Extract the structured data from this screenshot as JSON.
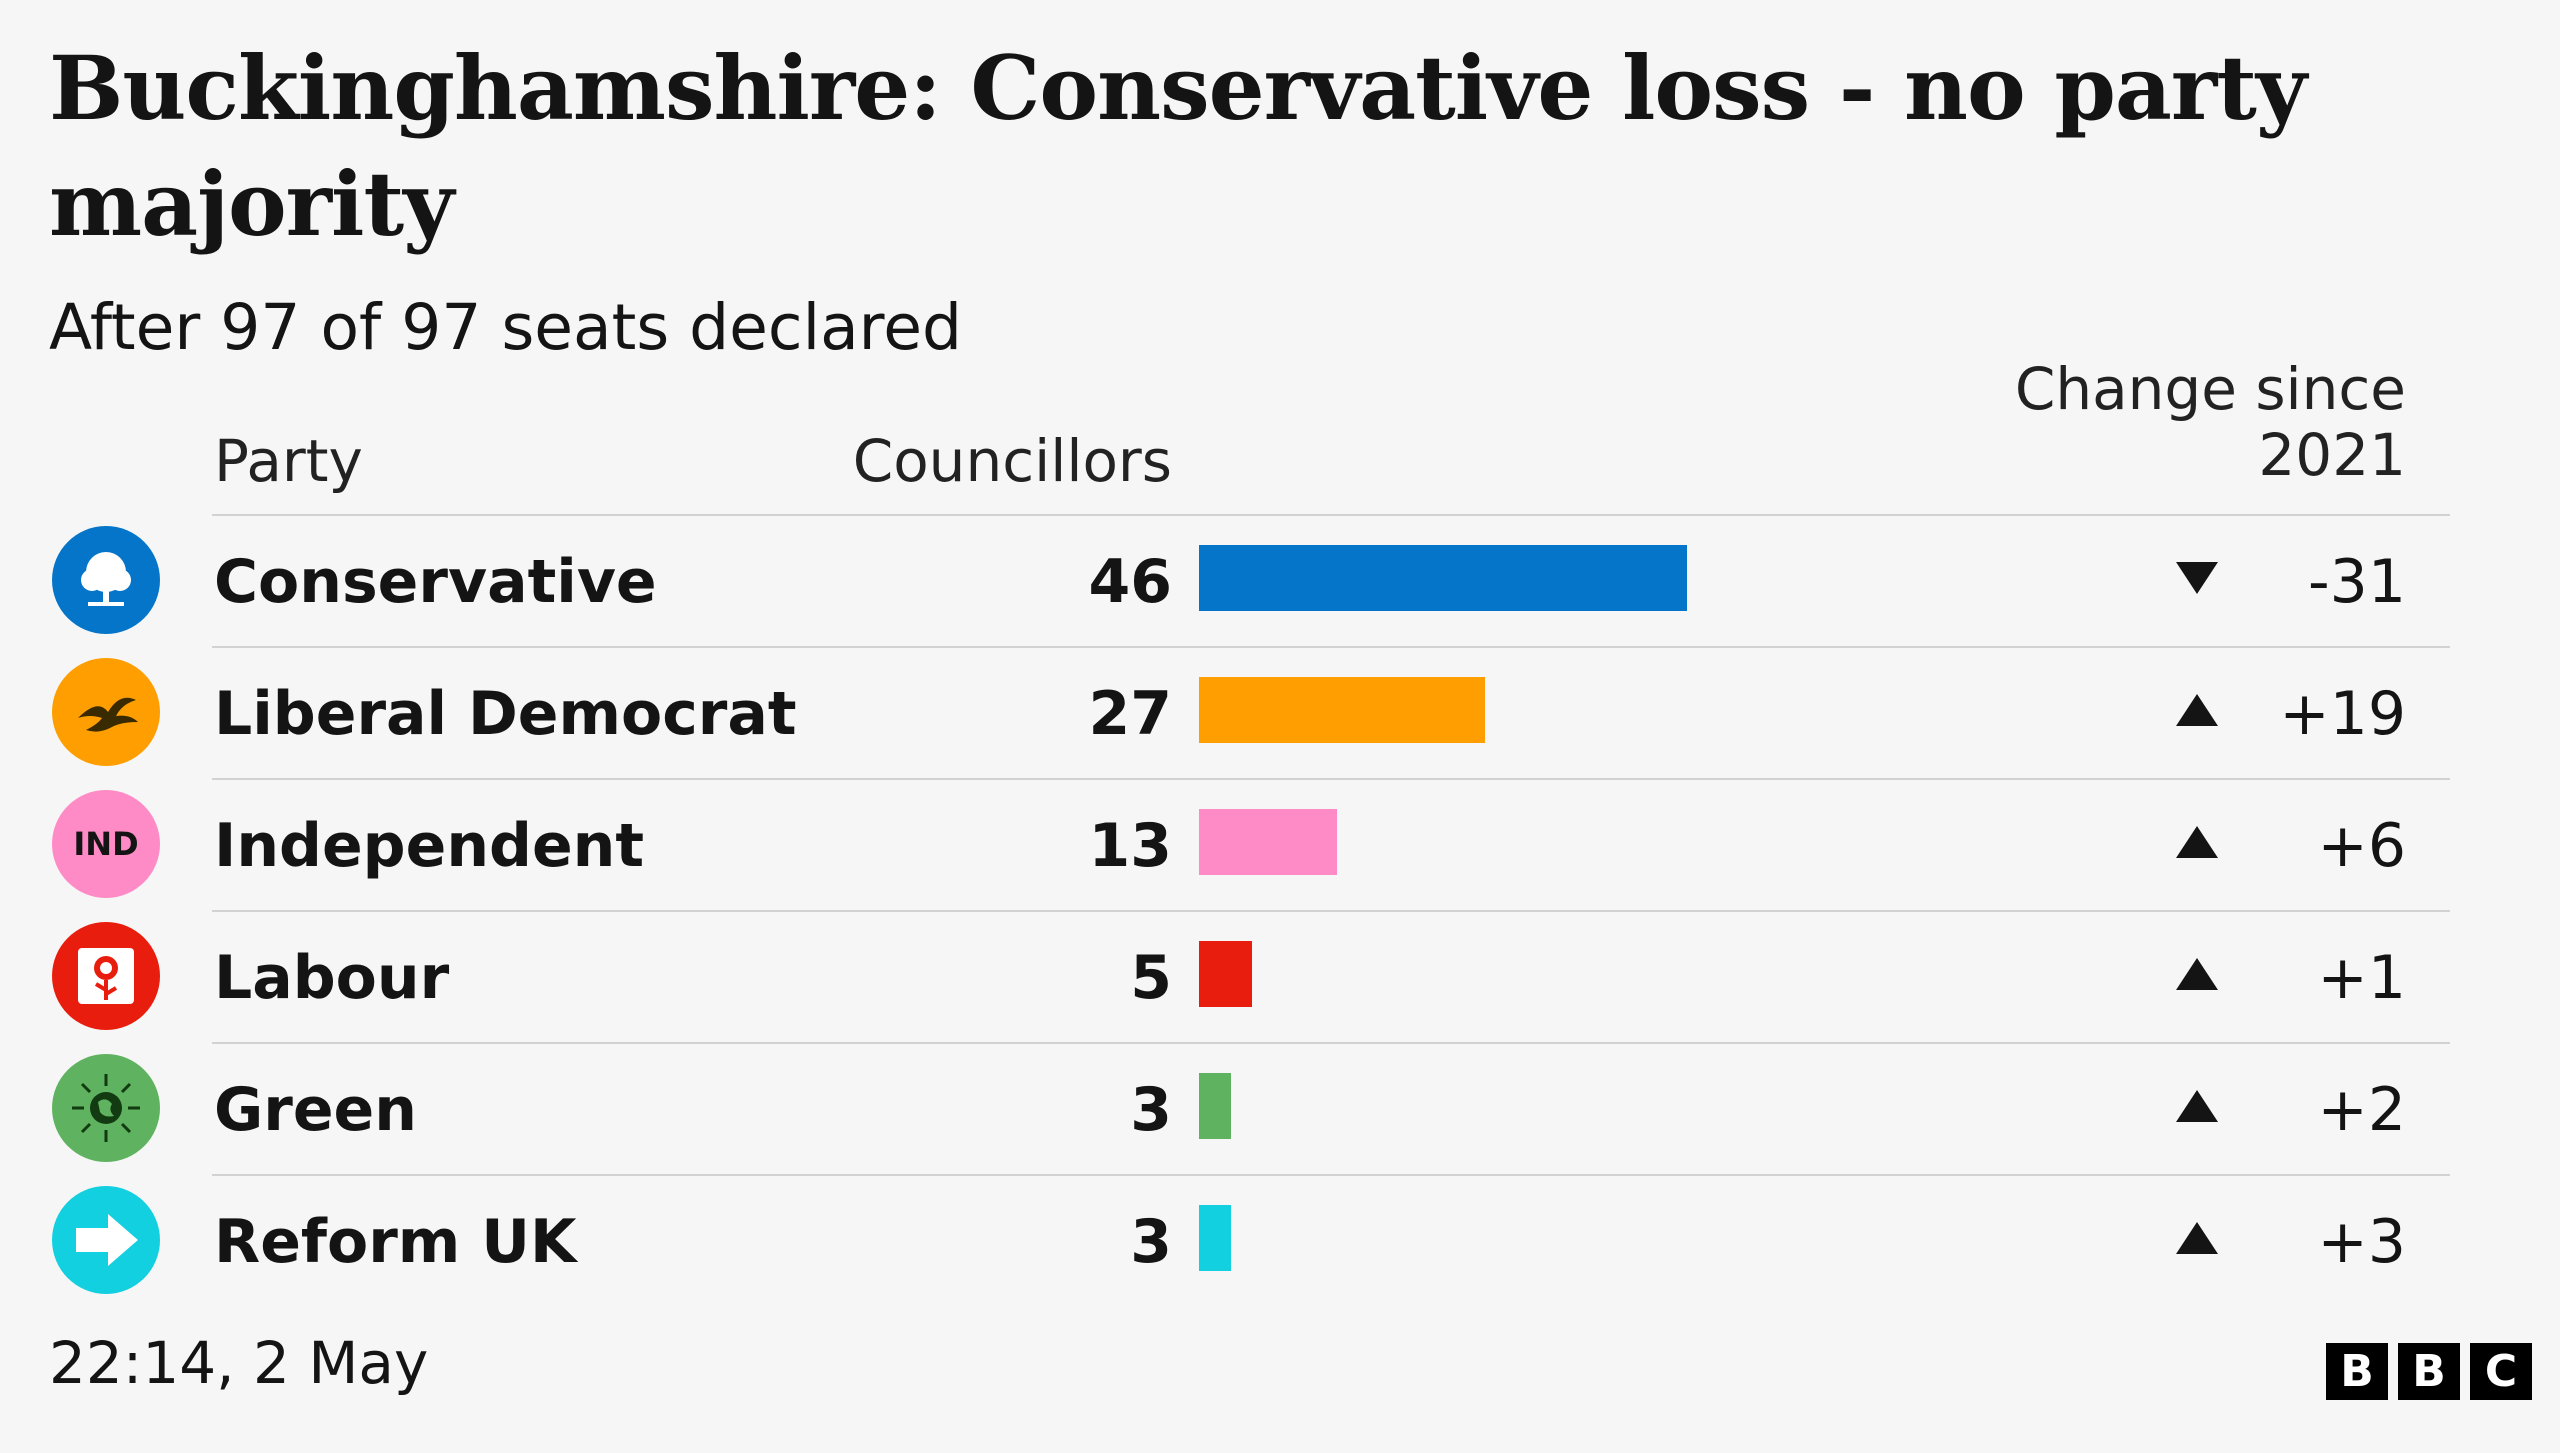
{
  "title": "Buckinghamshire: Conservative loss - no party majority",
  "subtitle": "After 97 of 97 seats declared",
  "headers": {
    "party": "Party",
    "councillors": "Councillors",
    "change": "Change since 2021"
  },
  "footer": {
    "timestamp": "22:14,  2 May"
  },
  "brand": {
    "letters": [
      "B",
      "B",
      "C"
    ]
  },
  "chart_data": {
    "type": "bar",
    "orientation": "horizontal",
    "title": "Buckinghamshire: Conservative loss - no party majority",
    "subtitle": "After 97 of 97 seats declared",
    "categories": [
      "Conservative",
      "Liberal Democrat",
      "Independent",
      "Labour",
      "Green",
      "Reform UK"
    ],
    "values": [
      46,
      27,
      13,
      5,
      3,
      3
    ],
    "changes": [
      "-31",
      "+19",
      "+6",
      "+1",
      "+2",
      "+3"
    ],
    "change_direction": [
      "down",
      "up",
      "up",
      "up",
      "up",
      "up"
    ],
    "colors": [
      "#0575c9",
      "#fe9e00",
      "#fe8bc6",
      "#e91d0e",
      "#5fb25f",
      "#12d0df"
    ],
    "logos": [
      "conservative-tree-icon",
      "libdem-bird-icon",
      "IND",
      "labour-rose-icon",
      "green-globe-icon",
      "reform-arrow-icon"
    ],
    "xlim": [
      0,
      46
    ]
  }
}
